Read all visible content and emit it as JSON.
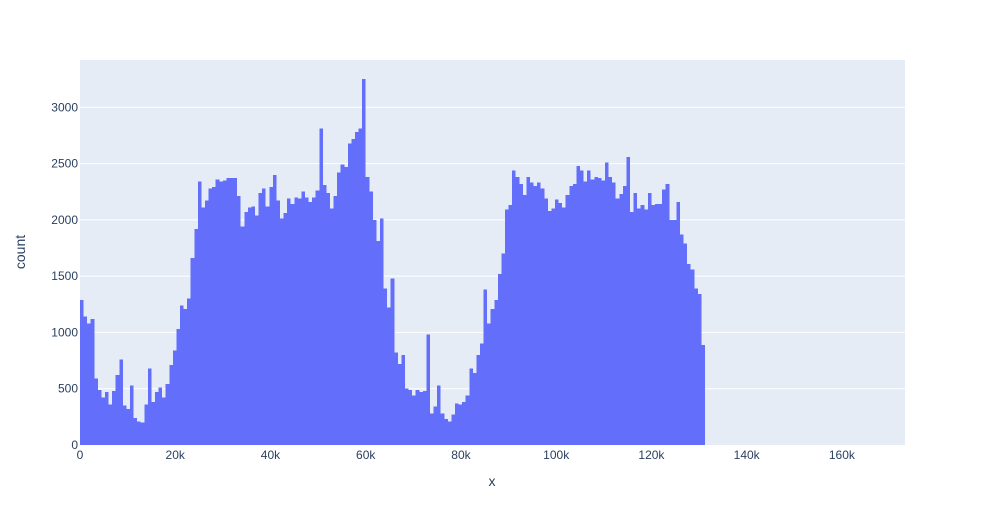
{
  "chart_data": {
    "type": "bar",
    "subtype": "histogram",
    "xlabel": "x",
    "ylabel": "count",
    "xlim": [
      0,
      173250
    ],
    "ylim": [
      0,
      3420
    ],
    "bin_width": 750,
    "bin_start": 0,
    "x_ticks": [
      {
        "value": 0,
        "label": "0"
      },
      {
        "value": 20000,
        "label": "20k"
      },
      {
        "value": 40000,
        "label": "40k"
      },
      {
        "value": 60000,
        "label": "60k"
      },
      {
        "value": 80000,
        "label": "80k"
      },
      {
        "value": 100000,
        "label": "100k"
      },
      {
        "value": 120000,
        "label": "120k"
      },
      {
        "value": 140000,
        "label": "140k"
      },
      {
        "value": 160000,
        "label": "160k"
      }
    ],
    "y_ticks": [
      {
        "value": 0,
        "label": "0"
      },
      {
        "value": 500,
        "label": "500"
      },
      {
        "value": 1000,
        "label": "1000"
      },
      {
        "value": 1500,
        "label": "1500"
      },
      {
        "value": 2000,
        "label": "2000"
      },
      {
        "value": 2500,
        "label": "2500"
      },
      {
        "value": 3000,
        "label": "3000"
      }
    ],
    "grid": true,
    "colors": {
      "bar": "#636efa",
      "plot_bg": "#e5ecf6",
      "grid": "#ffffff",
      "text": "#2a3f5f"
    },
    "counts": [
      1290,
      1140,
      1080,
      1120,
      590,
      490,
      420,
      470,
      360,
      480,
      620,
      760,
      350,
      320,
      530,
      240,
      210,
      200,
      360,
      680,
      380,
      470,
      510,
      420,
      540,
      710,
      840,
      1030,
      1240,
      1210,
      1300,
      1660,
      1920,
      2340,
      2110,
      2170,
      2280,
      2290,
      2360,
      2340,
      2350,
      2370,
      2370,
      2370,
      2210,
      1940,
      2070,
      2110,
      2120,
      2040,
      2240,
      2280,
      2120,
      2290,
      2400,
      2170,
      2010,
      2060,
      2190,
      2140,
      2200,
      2190,
      2250,
      2200,
      2160,
      2200,
      2260,
      2810,
      2310,
      2240,
      2100,
      2210,
      2420,
      2490,
      2470,
      2680,
      2720,
      2780,
      2810,
      3250,
      2380,
      2250,
      2000,
      1810,
      2010,
      1390,
      1220,
      1480,
      820,
      720,
      800,
      500,
      490,
      440,
      490,
      470,
      480,
      980,
      280,
      340,
      530,
      280,
      230,
      210,
      270,
      370,
      360,
      380,
      440,
      680,
      640,
      800,
      900,
      1380,
      1080,
      1210,
      1290,
      1520,
      1700,
      2090,
      2130,
      2440,
      2380,
      2320,
      2220,
      2380,
      2330,
      2300,
      2330,
      2280,
      2190,
      2080,
      2100,
      2180,
      2150,
      2110,
      2220,
      2300,
      2320,
      2480,
      2440,
      2340,
      2440,
      2360,
      2380,
      2370,
      2350,
      2510,
      2380,
      2330,
      2190,
      2230,
      2300,
      2560,
      2070,
      2240,
      2100,
      2130,
      2090,
      2240,
      2130,
      2140,
      2140,
      2270,
      2320,
      2000,
      2000,
      2160,
      1870,
      1790,
      1610,
      1560,
      1390,
      1340,
      890
    ]
  }
}
